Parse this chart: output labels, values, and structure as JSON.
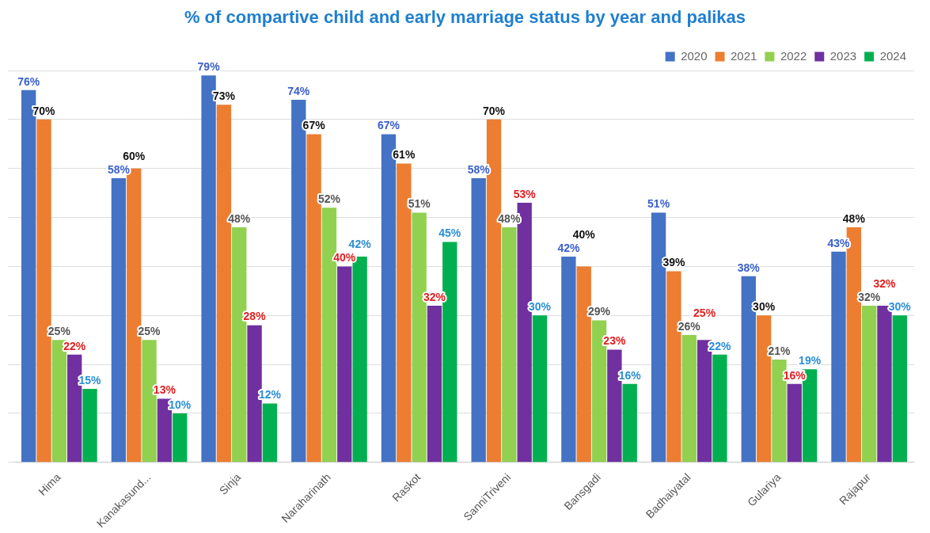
{
  "chart_data": {
    "type": "bar",
    "title": "% of compartive child and early marriage status by year and palikas",
    "categories": [
      "Hima",
      "Kanakasund...",
      "Sinja",
      "Naraharinath",
      "Raskot",
      "SanniTriveni",
      "Bansgadi",
      "Badhaiyatal",
      "Gulariya",
      "Rajapur"
    ],
    "series": [
      {
        "name": "2020",
        "color": "#4472c4",
        "values": [
          76,
          58,
          79,
          74,
          67,
          58,
          42,
          51,
          38,
          43
        ],
        "value_labels": [
          "76%",
          "58%",
          "79%",
          "74%",
          "67%",
          "58%",
          "42%",
          "51%",
          "38%",
          "43%"
        ]
      },
      {
        "name": "2021",
        "color": "#ed7d31",
        "values": [
          70,
          60,
          73,
          67,
          61,
          70,
          40,
          39,
          30,
          48
        ],
        "value_labels": [
          "70%",
          "60%",
          "73%",
          "67%",
          "61%",
          "70%",
          "40%",
          "39%",
          "30%",
          "48%"
        ]
      },
      {
        "name": "2022",
        "color": "#92d050",
        "values": [
          25,
          25,
          48,
          52,
          51,
          48,
          29,
          26,
          21,
          32
        ],
        "value_labels": [
          "25%",
          "25%",
          "48%",
          "52%",
          "51%",
          "48%",
          "29%",
          "26%",
          "21%",
          "32%"
        ]
      },
      {
        "name": "2023",
        "color": "#7030a0",
        "values": [
          22,
          13,
          28,
          40,
          32,
          53,
          23,
          25,
          16,
          32
        ],
        "value_labels": [
          "22%",
          "13%",
          "28%",
          "40%",
          "32%",
          "53%",
          "23%",
          "25%",
          "16%",
          "32%"
        ]
      },
      {
        "name": "2024",
        "color": "#00b050",
        "values": [
          15,
          10,
          12,
          42,
          45,
          30,
          16,
          22,
          19,
          30
        ],
        "value_labels": [
          "15%",
          "10%",
          "12%",
          "42%",
          "45%",
          "30%",
          "16%",
          "22%",
          "19%",
          "30%"
        ]
      }
    ],
    "ylim": [
      0,
      80
    ],
    "yticks": [
      {
        "value": 0,
        "label": null
      },
      {
        "value": 10,
        "label": null
      },
      {
        "value": 20,
        "label": null
      },
      {
        "value": 30,
        "label": null
      },
      {
        "value": 40,
        "label": null
      },
      {
        "value": 50,
        "label": null
      },
      {
        "value": 60,
        "label": null
      },
      {
        "value": 70,
        "label": null
      },
      {
        "value": 80,
        "label": null
      }
    ],
    "grid": "y",
    "legend": "top right",
    "tick_labels": "x"
  }
}
